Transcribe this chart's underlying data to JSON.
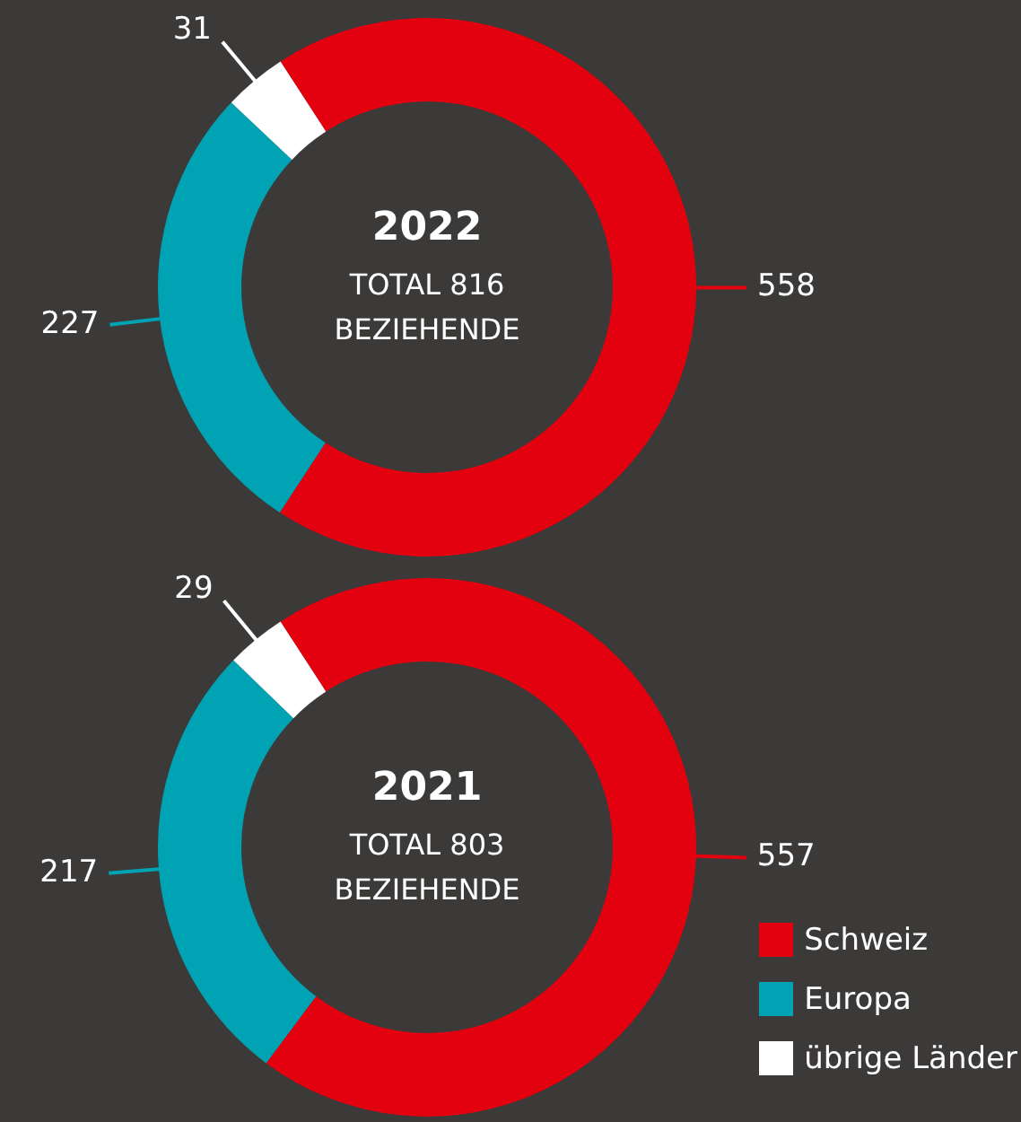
{
  "chart_data": [
    {
      "type": "donut",
      "title": "2022",
      "subtitle": "TOTAL 816 BEZIEHENDE",
      "categories": [
        null,
        null,
        null
      ],
      "values": [
        558,
        227,
        31
      ],
      "colors": [
        "#e3000f",
        "#00a3b4",
        "#ffffff"
      ],
      "data_labels": true,
      "legend": false
    },
    {
      "type": "donut",
      "title": "2021",
      "subtitle": "TOTAL 803 BEZIEHENDE",
      "categories": [
        "Schweiz",
        "Europa",
        "übrige Länder"
      ],
      "values": [
        557,
        217,
        29
      ],
      "colors": [
        "#e3000f",
        "#00a3b4",
        "#ffffff"
      ],
      "data_labels": true,
      "legend": "bottom right"
    }
  ]
}
